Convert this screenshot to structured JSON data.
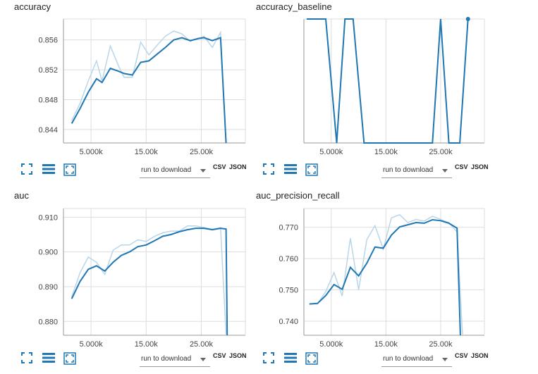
{
  "controls": {
    "download_label": "run to download",
    "csv_label": "CSV",
    "json_label": "JSON",
    "icons": [
      "expand-icon",
      "lines-icon",
      "fit-icon"
    ]
  },
  "colors": {
    "line": "#1f77b4",
    "smoothed_raw": "#b9d6e9",
    "grid": "#dddddd",
    "axis": "#999999",
    "icon": "#1f77b4"
  },
  "chart_data": [
    {
      "type": "line",
      "title": "accuracy",
      "x_ticks": [
        "5.000k",
        "15.00k",
        "25.00k"
      ],
      "x_tick_values": [
        5000,
        15000,
        25000
      ],
      "xlim": [
        0,
        33000
      ],
      "y_ticks": [
        "0.844",
        "0.848",
        "0.852",
        "0.856"
      ],
      "y_tick_values": [
        0.844,
        0.848,
        0.852,
        0.856
      ],
      "ylim": [
        0.8422,
        0.8588
      ],
      "series": [
        {
          "values_raw": [
            [
              1500,
              0.8452
            ],
            [
              3000,
              0.8475
            ],
            [
              4500,
              0.8505
            ],
            [
              6000,
              0.8532
            ],
            [
              7000,
              0.8505
            ],
            [
              8500,
              0.8552
            ],
            [
              10000,
              0.8525
            ],
            [
              11000,
              0.851
            ],
            [
              12500,
              0.851
            ],
            [
              14000,
              0.8557
            ],
            [
              15500,
              0.854
            ],
            [
              17000,
              0.8553
            ],
            [
              18500,
              0.8565
            ],
            [
              20000,
              0.8572
            ],
            [
              21500,
              0.8568
            ],
            [
              23000,
              0.8558
            ],
            [
              24500,
              0.8562
            ],
            [
              25500,
              0.8565
            ],
            [
              27000,
              0.855
            ],
            [
              28500,
              0.857
            ],
            [
              29500,
              0.842
            ]
          ],
          "values": [
            [
              1500,
              0.8448
            ],
            [
              3000,
              0.8468
            ],
            [
              4500,
              0.849
            ],
            [
              6000,
              0.8508
            ],
            [
              7000,
              0.8503
            ],
            [
              8500,
              0.8522
            ],
            [
              10000,
              0.8518
            ],
            [
              11000,
              0.8515
            ],
            [
              12500,
              0.8513
            ],
            [
              14000,
              0.853
            ],
            [
              15500,
              0.8532
            ],
            [
              17000,
              0.8541
            ],
            [
              18500,
              0.855
            ],
            [
              20000,
              0.856
            ],
            [
              21500,
              0.8563
            ],
            [
              23000,
              0.8559
            ],
            [
              24500,
              0.8562
            ],
            [
              25500,
              0.8563
            ],
            [
              27000,
              0.8559
            ],
            [
              28500,
              0.8563
            ],
            [
              29500,
              0.842
            ]
          ]
        }
      ]
    },
    {
      "type": "line",
      "title": "accuracy_baseline",
      "x_ticks": [
        "5.000k",
        "15.00k",
        "25.00k"
      ],
      "x_tick_values": [
        5000,
        15000,
        25000
      ],
      "xlim": [
        0,
        33000
      ],
      "y_ticks": [],
      "y_tick_values": [],
      "ylim": [
        0,
        1
      ],
      "series": [
        {
          "values_raw": [
            [
              500,
              1
            ],
            [
              4000,
              1
            ],
            [
              6000,
              0
            ],
            [
              7500,
              1
            ],
            [
              9000,
              1
            ],
            [
              11000,
              0
            ],
            [
              23500,
              0
            ],
            [
              25000,
              1
            ],
            [
              26500,
              0
            ],
            [
              28500,
              0
            ],
            [
              30000,
              1
            ]
          ],
          "values": [
            [
              500,
              1
            ],
            [
              4000,
              1
            ],
            [
              6000,
              0
            ],
            [
              7500,
              1
            ],
            [
              9000,
              1
            ],
            [
              11000,
              0
            ],
            [
              23500,
              0
            ],
            [
              25000,
              1
            ],
            [
              26500,
              0
            ],
            [
              28500,
              0
            ],
            [
              30000,
              1
            ]
          ]
        }
      ]
    },
    {
      "type": "line",
      "title": "auc",
      "x_ticks": [
        "5.000k",
        "15.00k",
        "25.00k"
      ],
      "x_tick_values": [
        5000,
        15000,
        25000
      ],
      "xlim": [
        0,
        33000
      ],
      "y_ticks": [
        "0.880",
        "0.890",
        "0.900",
        "0.910"
      ],
      "y_tick_values": [
        0.88,
        0.89,
        0.9,
        0.91
      ],
      "ylim": [
        0.876,
        0.9125
      ],
      "series": [
        {
          "values_raw": [
            [
              1500,
              0.887
            ],
            [
              3000,
              0.894
            ],
            [
              4500,
              0.8985
            ],
            [
              6000,
              0.897
            ],
            [
              7500,
              0.8935
            ],
            [
              9000,
              0.9005
            ],
            [
              10500,
              0.902
            ],
            [
              12000,
              0.902
            ],
            [
              13500,
              0.9035
            ],
            [
              15000,
              0.903
            ],
            [
              16500,
              0.9045
            ],
            [
              18000,
              0.9055
            ],
            [
              19500,
              0.906
            ],
            [
              21000,
              0.906
            ],
            [
              22500,
              0.9075
            ],
            [
              24000,
              0.9075
            ],
            [
              25500,
              0.907
            ],
            [
              27000,
              0.9065
            ],
            [
              28500,
              0.907
            ],
            [
              29500,
              0.876
            ]
          ],
          "values": [
            [
              1500,
              0.8865
            ],
            [
              3000,
              0.8915
            ],
            [
              4500,
              0.895
            ],
            [
              6000,
              0.896
            ],
            [
              7500,
              0.8945
            ],
            [
              9000,
              0.897
            ],
            [
              10500,
              0.899
            ],
            [
              12000,
              0.9
            ],
            [
              13500,
              0.9015
            ],
            [
              15000,
              0.902
            ],
            [
              16500,
              0.9032
            ],
            [
              18000,
              0.9045
            ],
            [
              19500,
              0.905
            ],
            [
              21000,
              0.9058
            ],
            [
              22500,
              0.9064
            ],
            [
              24000,
              0.9068
            ],
            [
              25500,
              0.9068
            ],
            [
              27000,
              0.9064
            ],
            [
              28500,
              0.9068
            ],
            [
              29500,
              0.9066
            ],
            [
              29700,
              0.876
            ]
          ]
        }
      ]
    },
    {
      "type": "line",
      "title": "auc_precision_recall",
      "x_ticks": [
        "5.000k",
        "15.00k",
        "25.00k"
      ],
      "x_tick_values": [
        5000,
        15000,
        25000
      ],
      "xlim": [
        0,
        33000
      ],
      "y_ticks": [
        "0.740",
        "0.750",
        "0.760",
        "0.770"
      ],
      "y_tick_values": [
        0.74,
        0.75,
        0.76,
        0.77
      ],
      "ylim": [
        0.7355,
        0.776
      ],
      "series": [
        {
          "values_raw": [
            [
              1000,
              0.7455
            ],
            [
              2500,
              0.7455
            ],
            [
              4000,
              0.7495
            ],
            [
              5500,
              0.7555
            ],
            [
              7000,
              0.748
            ],
            [
              8500,
              0.7665
            ],
            [
              10000,
              0.75
            ],
            [
              11500,
              0.766
            ],
            [
              13000,
              0.7705
            ],
            [
              14500,
              0.763
            ],
            [
              16000,
              0.773
            ],
            [
              17500,
              0.774
            ],
            [
              19000,
              0.7715
            ],
            [
              20500,
              0.7725
            ],
            [
              22000,
              0.772
            ],
            [
              23500,
              0.7735
            ],
            [
              25000,
              0.7725
            ],
            [
              26500,
              0.7715
            ],
            [
              28000,
              0.7685
            ],
            [
              29000,
              0.7355
            ]
          ],
          "values": [
            [
              1000,
              0.7455
            ],
            [
              2500,
              0.7457
            ],
            [
              4000,
              0.7482
            ],
            [
              5500,
              0.7517
            ],
            [
              7000,
              0.7502
            ],
            [
              8500,
              0.7572
            ],
            [
              10000,
              0.7545
            ],
            [
              11500,
              0.7585
            ],
            [
              13000,
              0.7637
            ],
            [
              14500,
              0.7633
            ],
            [
              16000,
              0.7675
            ],
            [
              17500,
              0.7701
            ],
            [
              19000,
              0.7708
            ],
            [
              20500,
              0.7715
            ],
            [
              22000,
              0.7713
            ],
            [
              23500,
              0.7724
            ],
            [
              25000,
              0.7721
            ],
            [
              26500,
              0.7713
            ],
            [
              28000,
              0.7697
            ],
            [
              28600,
              0.7355
            ]
          ]
        }
      ]
    }
  ]
}
